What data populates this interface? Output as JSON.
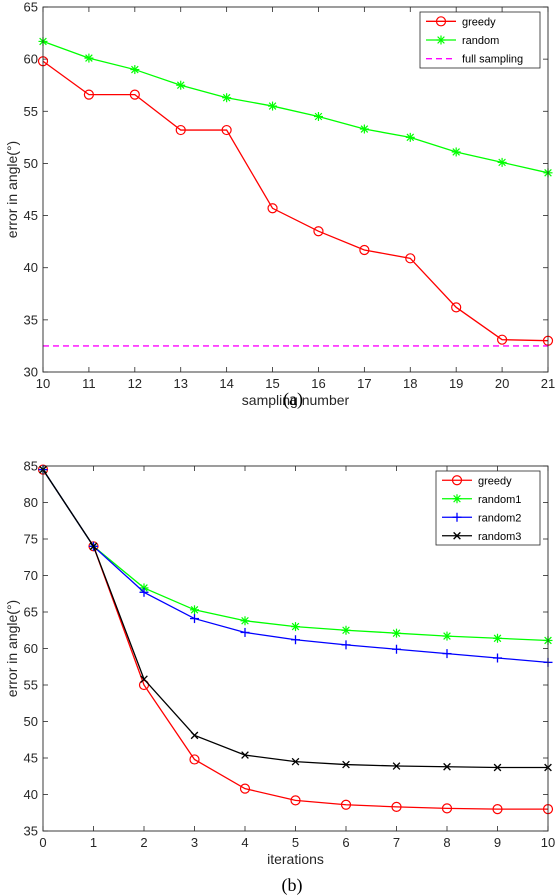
{
  "chart_data": [
    {
      "type": "line",
      "caption": "(a)",
      "xlabel": "sampling number",
      "ylabel": "error in angle(°)",
      "xlim": [
        10,
        21
      ],
      "ylim": [
        30,
        65
      ],
      "xticks": [
        10,
        11,
        12,
        13,
        14,
        15,
        16,
        17,
        18,
        19,
        20,
        21
      ],
      "yticks": [
        30,
        35,
        40,
        45,
        50,
        55,
        60,
        65
      ],
      "legend_position": "top-right",
      "series": [
        {
          "name": "greedy",
          "color": "#ff0000",
          "marker": "circle",
          "dash": "solid",
          "x": [
            10,
            11,
            12,
            13,
            14,
            15,
            16,
            17,
            18,
            19,
            20,
            21
          ],
          "y": [
            59.8,
            56.6,
            56.6,
            53.2,
            53.2,
            45.7,
            43.5,
            41.7,
            40.9,
            36.2,
            33.1,
            33.0
          ]
        },
        {
          "name": "random",
          "color": "#00ff00",
          "marker": "asterisk",
          "dash": "solid",
          "x": [
            10,
            11,
            12,
            13,
            14,
            15,
            16,
            17,
            18,
            19,
            20,
            21
          ],
          "y": [
            61.7,
            60.1,
            59.0,
            57.5,
            56.3,
            55.5,
            54.5,
            53.3,
            52.5,
            51.1,
            50.1,
            49.1
          ]
        },
        {
          "name": "full sampling",
          "color": "#ff00ff",
          "marker": "none",
          "dash": "dashed",
          "x": [
            10,
            21
          ],
          "y": [
            32.5,
            32.5
          ]
        }
      ]
    },
    {
      "type": "line",
      "caption": "(b)",
      "xlabel": "iterations",
      "ylabel": "error in angle(°)",
      "xlim": [
        0,
        10
      ],
      "ylim": [
        35,
        85
      ],
      "xticks": [
        0,
        1,
        2,
        3,
        4,
        5,
        6,
        7,
        8,
        9,
        10
      ],
      "yticks": [
        35,
        40,
        45,
        50,
        55,
        60,
        65,
        70,
        75,
        80,
        85
      ],
      "legend_position": "top-right",
      "series": [
        {
          "name": "greedy",
          "color": "#ff0000",
          "marker": "circle",
          "dash": "solid",
          "x": [
            0,
            1,
            2,
            3,
            4,
            5,
            6,
            7,
            8,
            9,
            10
          ],
          "y": [
            84.5,
            74.0,
            55.0,
            44.8,
            40.8,
            39.2,
            38.6,
            38.3,
            38.1,
            38.0,
            38.0
          ]
        },
        {
          "name": "random1",
          "color": "#00ff00",
          "marker": "asterisk",
          "dash": "solid",
          "x": [
            0,
            1,
            2,
            3,
            4,
            5,
            6,
            7,
            8,
            9,
            10
          ],
          "y": [
            84.5,
            74.0,
            68.3,
            65.3,
            63.8,
            63.0,
            62.5,
            62.1,
            61.7,
            61.4,
            61.1
          ]
        },
        {
          "name": "random2",
          "color": "#0000ff",
          "marker": "plus",
          "dash": "solid",
          "x": [
            0,
            1,
            2,
            3,
            4,
            5,
            6,
            7,
            8,
            9,
            10
          ],
          "y": [
            84.5,
            74.0,
            67.7,
            64.1,
            62.2,
            61.2,
            60.5,
            59.9,
            59.3,
            58.7,
            58.1
          ]
        },
        {
          "name": "random3",
          "color": "#000000",
          "marker": "cross",
          "dash": "solid",
          "x": [
            0,
            1,
            2,
            3,
            4,
            5,
            6,
            7,
            8,
            9,
            10
          ],
          "y": [
            84.5,
            74.0,
            55.8,
            48.1,
            45.4,
            44.5,
            44.1,
            43.9,
            43.8,
            43.7,
            43.7
          ]
        }
      ]
    }
  ]
}
